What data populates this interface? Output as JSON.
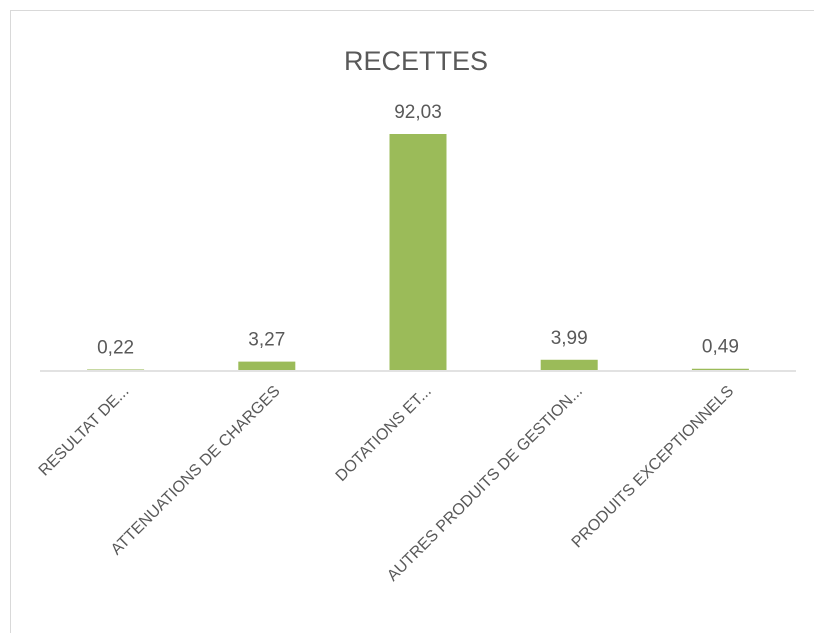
{
  "chart_data": {
    "type": "bar",
    "title": "RECETTES",
    "categories": [
      "RESULTAT DE...",
      "ATTENUATIONS DE CHARGES",
      "DOTATIONS ET...",
      "AUTRES PRODUITS DE GESTION...",
      "PRODUITS EXCEPTIONNELS"
    ],
    "values": [
      0.22,
      3.27,
      92.03,
      3.99,
      0.49
    ],
    "value_labels": [
      "0,22",
      "3,27",
      "92,03",
      "3,99",
      "0,49"
    ],
    "ylim": [
      0,
      92.03
    ],
    "grid": false,
    "legend": "none",
    "colors": {
      "bar": "#9bbb59",
      "axis": "#d9d9d9",
      "text": "#595959",
      "title": "#595959"
    }
  }
}
